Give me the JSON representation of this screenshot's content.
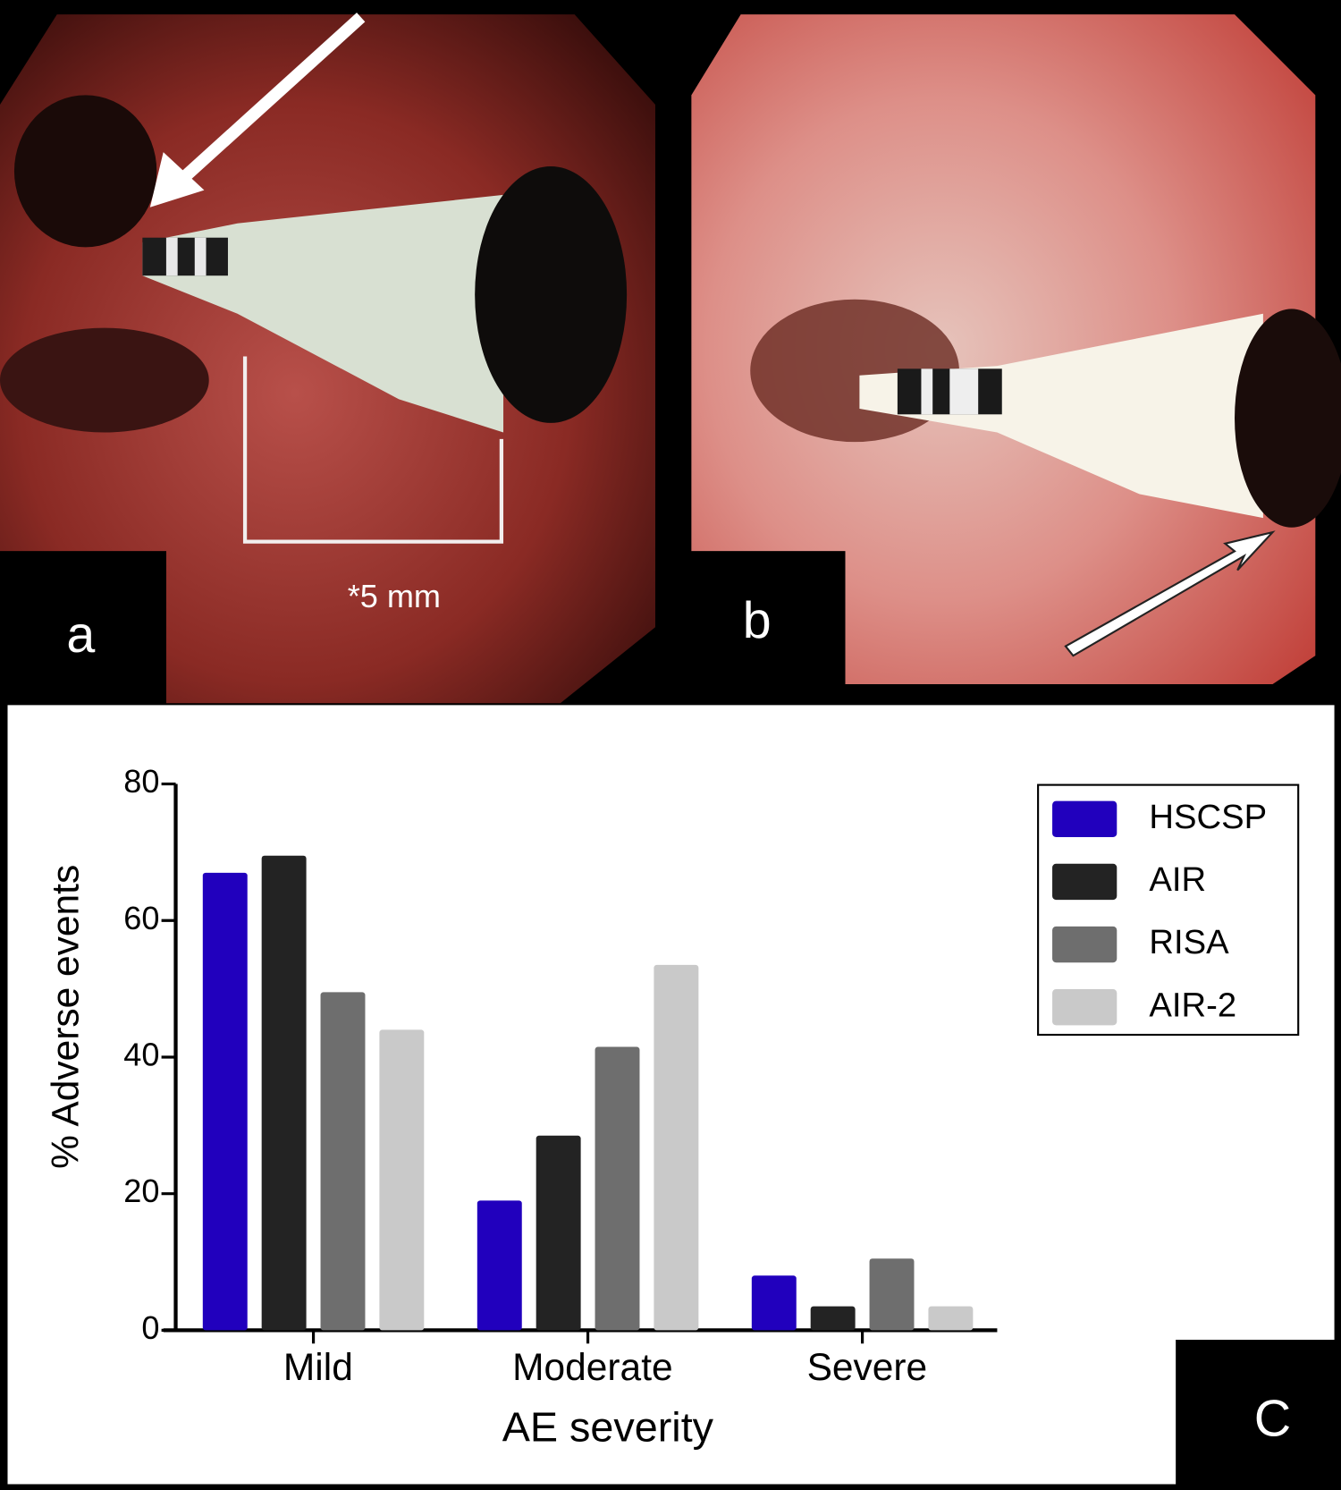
{
  "panels": {
    "a": {
      "label": "a",
      "scale_note": "*5 mm"
    },
    "b": {
      "label": "b"
    },
    "c": {
      "label": "C"
    }
  },
  "chart_data": {
    "type": "bar",
    "x_label": "AE severity",
    "y_label": "% Adverse events",
    "categories": [
      "Mild",
      "Moderate",
      "Severe"
    ],
    "series": [
      {
        "name": "HSCSP",
        "color": "#2100bd",
        "values": [
          67,
          19,
          8
        ]
      },
      {
        "name": "AIR",
        "color": "#232323",
        "values": [
          69.5,
          28.5,
          3.5
        ]
      },
      {
        "name": "RISA",
        "color": "#6e6e6e",
        "values": [
          49.5,
          41.5,
          10.5
        ]
      },
      {
        "name": "AIR-2",
        "color": "#c9c9c9",
        "values": [
          44,
          53.5,
          3.5
        ]
      }
    ],
    "ylim": [
      0,
      80
    ],
    "yticks": [
      0,
      20,
      40,
      60,
      80
    ],
    "legend": "upper right"
  }
}
